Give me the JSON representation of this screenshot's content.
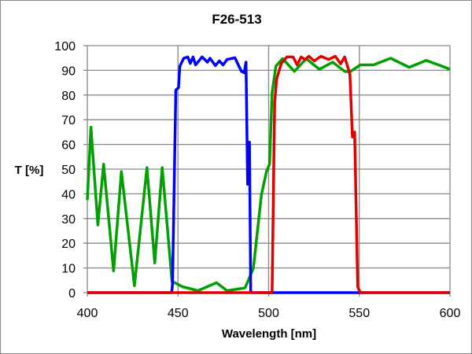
{
  "chart_data": {
    "type": "line",
    "title": "F26-513",
    "xlabel": "Wavelength [nm]",
    "ylabel": "T [%]",
    "xlim": [
      400,
      600
    ],
    "ylim": [
      0,
      100
    ],
    "xticks": [
      400,
      450,
      500,
      550,
      600
    ],
    "yticks": [
      0,
      10,
      20,
      30,
      40,
      50,
      60,
      70,
      80,
      90,
      100
    ],
    "grid": true,
    "legend": "none",
    "series": [
      {
        "color": "#00A000",
        "points": [
          [
            400,
            37.5
          ],
          [
            402,
            67
          ],
          [
            405.8,
            27.4
          ],
          [
            409,
            52
          ],
          [
            414.5,
            8.8
          ],
          [
            418.8,
            49
          ],
          [
            426,
            2.8
          ],
          [
            432.9,
            50.6
          ],
          [
            437.2,
            12
          ],
          [
            441.3,
            50.6
          ],
          [
            446.7,
            4.6
          ],
          [
            452.5,
            2.4
          ],
          [
            461,
            0.8
          ],
          [
            471.3,
            4
          ],
          [
            477,
            0.8
          ],
          [
            487,
            1.9
          ],
          [
            491.6,
            9.9
          ],
          [
            496,
            39.6
          ],
          [
            498.8,
            49
          ],
          [
            500.5,
            52
          ],
          [
            501.9,
            81
          ],
          [
            504,
            91.7
          ],
          [
            507.7,
            94.7
          ],
          [
            514.2,
            89.6
          ],
          [
            520.8,
            94.7
          ],
          [
            528,
            90.4
          ],
          [
            535.3,
            93.3
          ],
          [
            541.9,
            89.6
          ],
          [
            544.8,
            89.4
          ],
          [
            550.6,
            92.2
          ],
          [
            557.8,
            92.2
          ],
          [
            567.3,
            94.9
          ],
          [
            577.5,
            91.2
          ],
          [
            586.9,
            94
          ],
          [
            595.6,
            91.7
          ],
          [
            600,
            90.4
          ]
        ]
      },
      {
        "color": "#0000FF",
        "points": [
          [
            400,
            0
          ],
          [
            446.5,
            0
          ],
          [
            447,
            3.5
          ],
          [
            448.8,
            82
          ],
          [
            450.3,
            83
          ],
          [
            451,
            91.7
          ],
          [
            453.2,
            94.9
          ],
          [
            455.4,
            95.4
          ],
          [
            456.8,
            92.8
          ],
          [
            458.3,
            95.4
          ],
          [
            459.7,
            92.2
          ],
          [
            463.3,
            95.4
          ],
          [
            466.2,
            93.3
          ],
          [
            467.7,
            94.9
          ],
          [
            470.6,
            91.9
          ],
          [
            472.8,
            93.8
          ],
          [
            474.9,
            92.2
          ],
          [
            477.1,
            94.4
          ],
          [
            481.4,
            95.1
          ],
          [
            483.6,
            91.7
          ],
          [
            485,
            89.6
          ],
          [
            486.5,
            89
          ],
          [
            487.5,
            93.3
          ],
          [
            488.4,
            43.9
          ],
          [
            489.4,
            60.9
          ],
          [
            490.1,
            0.3
          ],
          [
            490.5,
            0
          ],
          [
            600,
            0
          ]
        ]
      },
      {
        "color": "#E00000",
        "points": [
          [
            400,
            0
          ],
          [
            501.5,
            0
          ],
          [
            501.9,
            0.5
          ],
          [
            503.3,
            76.8
          ],
          [
            504.4,
            86.4
          ],
          [
            507,
            92.8
          ],
          [
            510,
            95.4
          ],
          [
            513.5,
            95.4
          ],
          [
            515.7,
            92.2
          ],
          [
            517.9,
            95.4
          ],
          [
            520,
            94.4
          ],
          [
            522.2,
            95.7
          ],
          [
            525.1,
            93.8
          ],
          [
            528.8,
            95.7
          ],
          [
            533.1,
            94.4
          ],
          [
            536.8,
            95.7
          ],
          [
            539.7,
            92.6
          ],
          [
            541.9,
            95.4
          ],
          [
            544.8,
            88.5
          ],
          [
            546.2,
            63
          ],
          [
            547.4,
            65
          ],
          [
            549.1,
            2.4
          ],
          [
            550.6,
            0
          ],
          [
            600,
            0
          ]
        ]
      }
    ]
  }
}
